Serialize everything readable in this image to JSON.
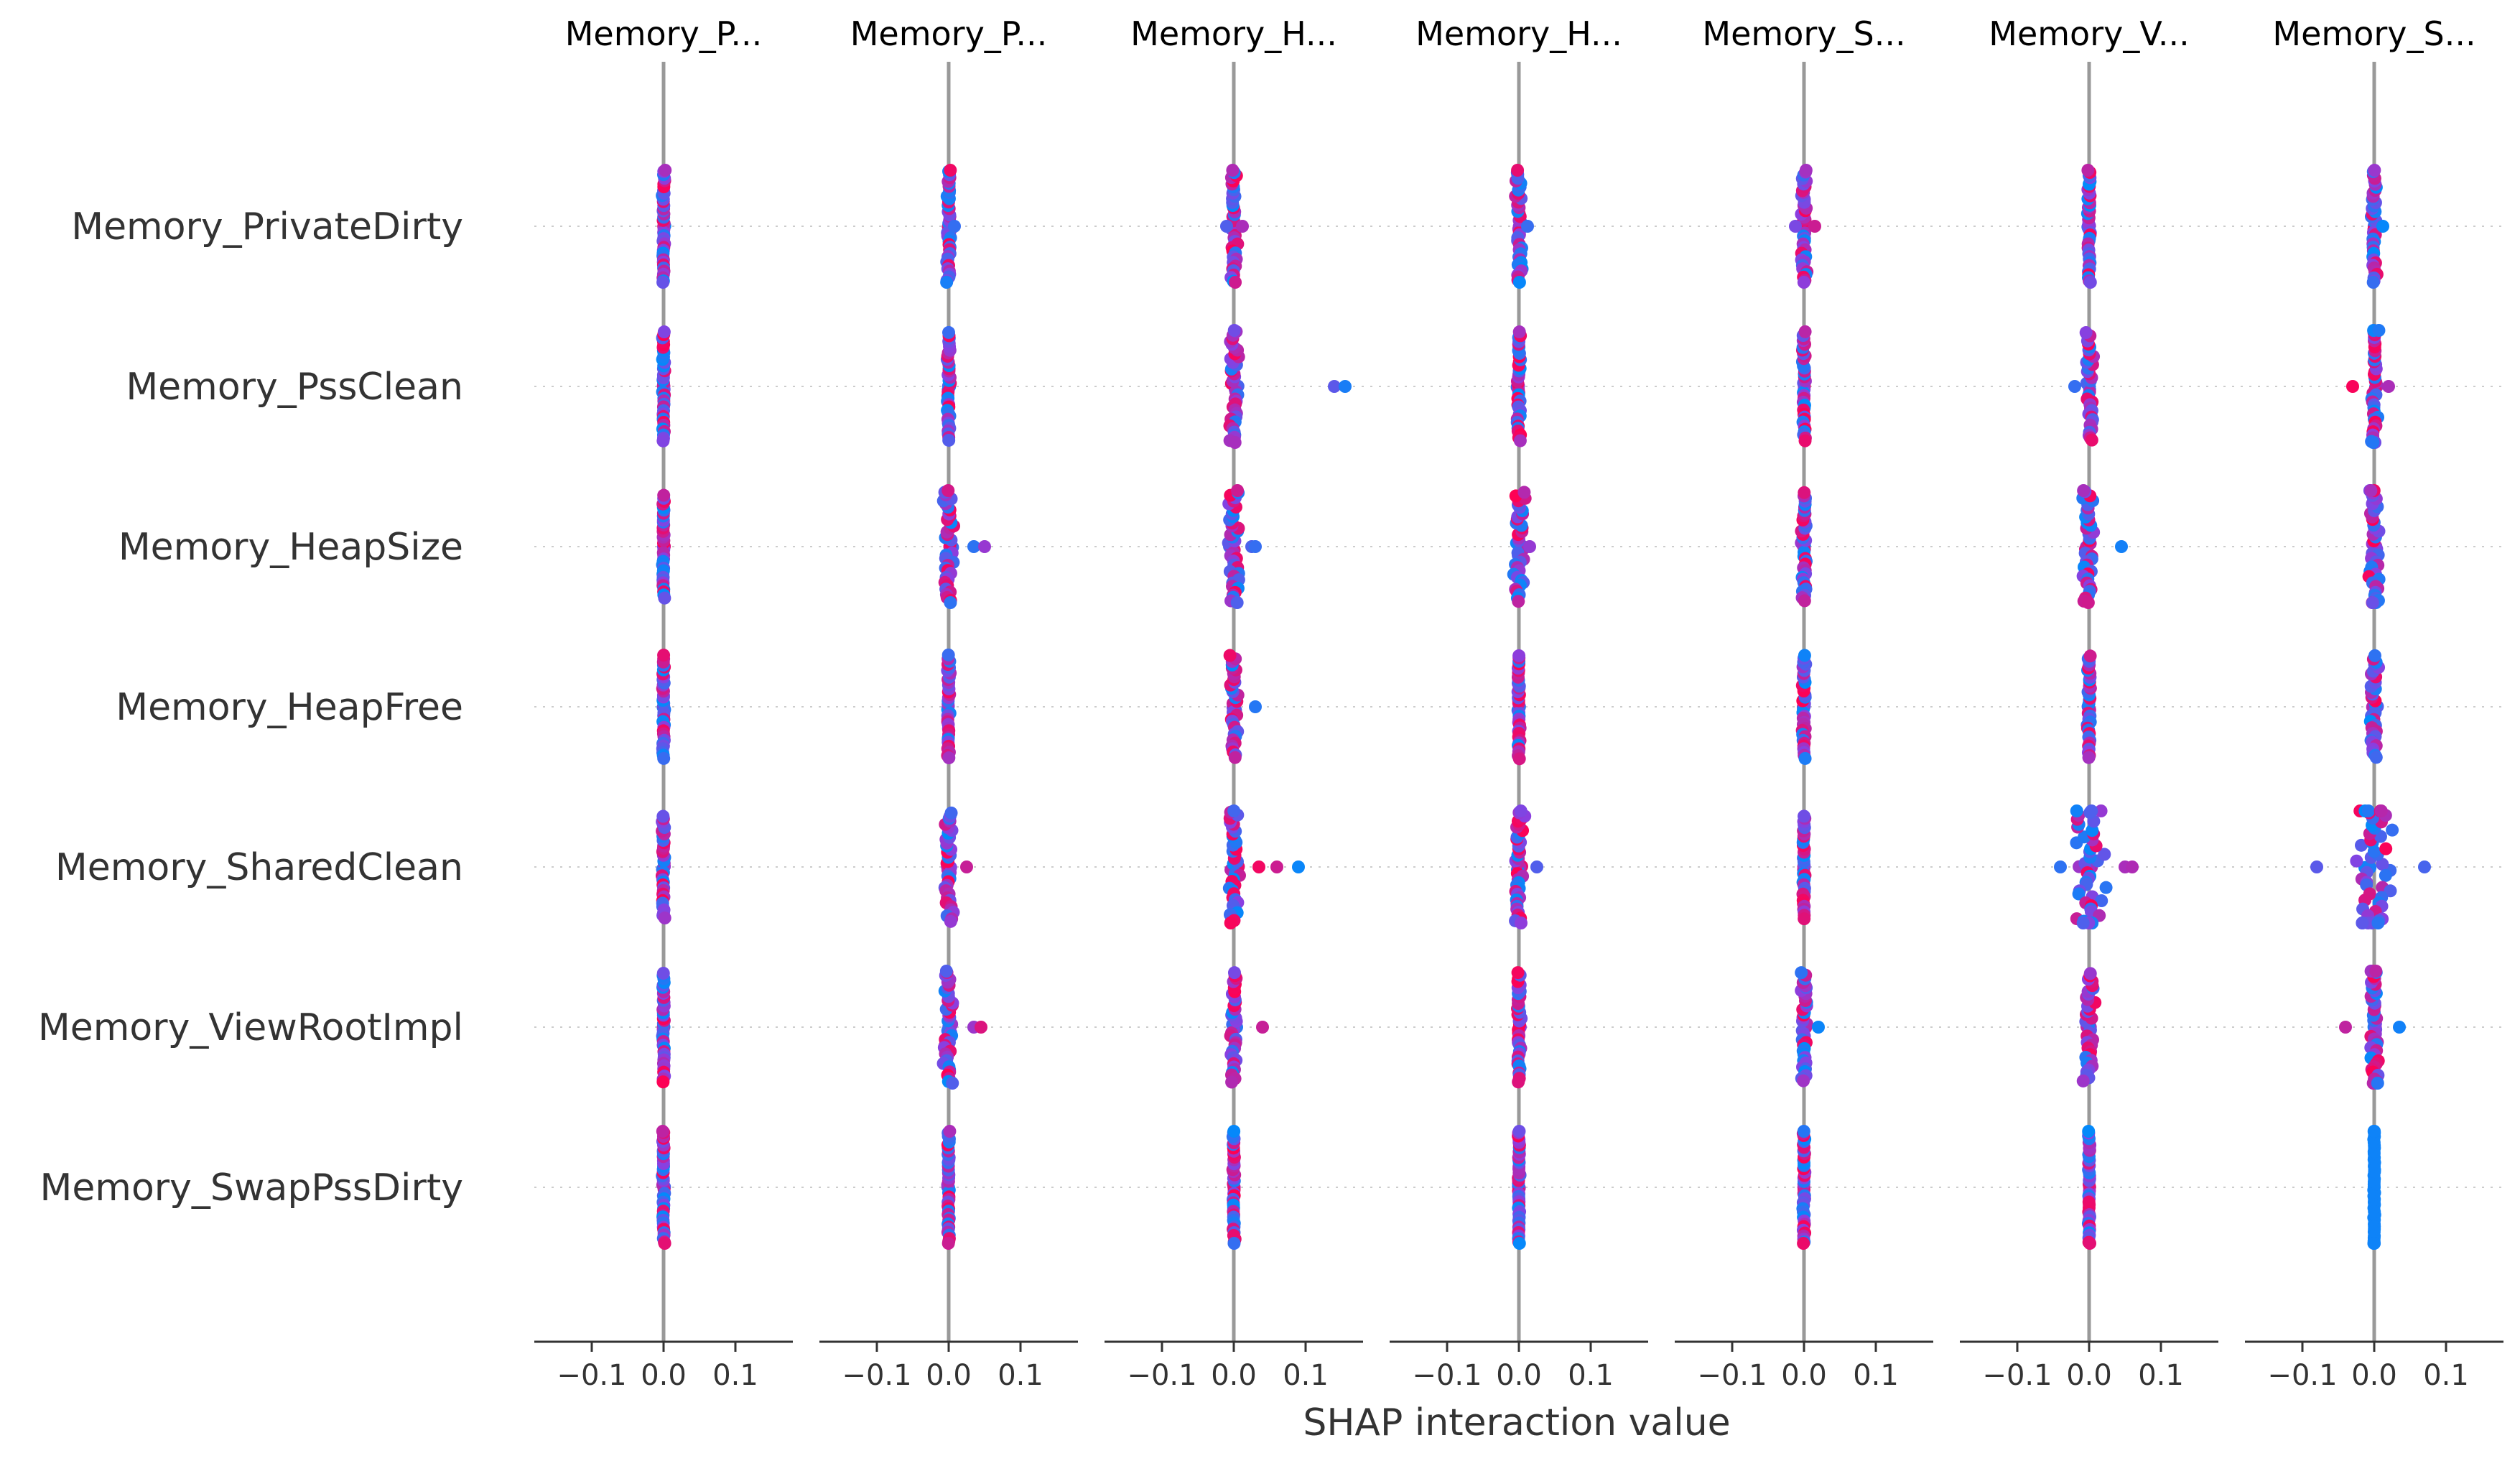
{
  "chart_data": {
    "type": "scatter",
    "subtype": "shap-interaction-beeswarm",
    "xlabel": "SHAP interaction value",
    "row_labels": [
      "Memory_PrivateDirty",
      "Memory_PssClean",
      "Memory_HeapSize",
      "Memory_HeapFree",
      "Memory_SharedClean",
      "Memory_ViewRootImpl",
      "Memory_SwapPssDirty"
    ],
    "column_titles": [
      "Memory_P...",
      "Memory_P...",
      "Memory_H...",
      "Memory_H...",
      "Memory_S...",
      "Memory_V...",
      "Memory_S..."
    ],
    "x_ticks": [
      {
        "value": -0.1,
        "label": "−0.1"
      },
      {
        "value": 0.0,
        "label": "0.0"
      },
      {
        "value": 0.1,
        "label": "0.1"
      }
    ],
    "xlim": [
      -0.18,
      0.18
    ],
    "grid": "horizontal dotted per row",
    "colors": {
      "low": "#008bfb",
      "high": "#ff0052",
      "zero_line": "#999999",
      "axis": "#333333",
      "text": "#333333",
      "grid": "#cccccc"
    },
    "cells": [
      [
        {
          "n": 40,
          "spread": 0.003
        },
        {
          "n": 40,
          "spread": 0.004,
          "outliers": [
            0.008
          ]
        },
        {
          "n": 40,
          "spread": 0.006,
          "outliers": [
            -0.01,
            0.012
          ]
        },
        {
          "n": 40,
          "spread": 0.006,
          "outliers": [
            0.012
          ]
        },
        {
          "n": 40,
          "spread": 0.005,
          "outliers": [
            -0.012,
            0.015
          ]
        },
        {
          "n": 40,
          "spread": 0.003
        },
        {
          "n": 40,
          "spread": 0.005,
          "outliers": [
            0.012
          ]
        }
      ],
      [
        {
          "n": 38,
          "spread": 0.002
        },
        {
          "n": 38,
          "spread": 0.003
        },
        {
          "n": 40,
          "spread": 0.009,
          "outliers": [
            0.14,
            0.155
          ]
        },
        {
          "n": 38,
          "spread": 0.004
        },
        {
          "n": 38,
          "spread": 0.003
        },
        {
          "n": 38,
          "spread": 0.008,
          "outliers": [
            -0.02
          ]
        },
        {
          "n": 44,
          "spread": 0.008,
          "outliers": [
            -0.03,
            0.02
          ]
        }
      ],
      [
        {
          "n": 36,
          "spread": 0.002
        },
        {
          "n": 40,
          "spread": 0.01,
          "outliers": [
            0.035,
            0.05
          ]
        },
        {
          "n": 40,
          "spread": 0.01,
          "outliers": [
            0.025,
            0.03
          ]
        },
        {
          "n": 38,
          "spread": 0.01,
          "outliers": [
            0.015
          ]
        },
        {
          "n": 38,
          "spread": 0.006
        },
        {
          "n": 40,
          "spread": 0.012,
          "outliers": [
            0.045
          ]
        },
        {
          "n": 44,
          "spread": 0.01
        }
      ],
      [
        {
          "n": 36,
          "spread": 0.002
        },
        {
          "n": 36,
          "spread": 0.003
        },
        {
          "n": 36,
          "spread": 0.008,
          "outliers": [
            0.03
          ]
        },
        {
          "n": 36,
          "spread": 0.002
        },
        {
          "n": 36,
          "spread": 0.004
        },
        {
          "n": 36,
          "spread": 0.003
        },
        {
          "n": 36,
          "spread": 0.008
        }
      ],
      [
        {
          "n": 36,
          "spread": 0.003
        },
        {
          "n": 38,
          "spread": 0.008,
          "outliers": [
            0.025
          ]
        },
        {
          "n": 40,
          "spread": 0.01,
          "outliers": [
            0.035,
            0.06,
            0.09
          ]
        },
        {
          "n": 40,
          "spread": 0.01,
          "outliers": [
            0.025
          ]
        },
        {
          "n": 36,
          "spread": 0.002
        },
        {
          "n": 44,
          "spread": 0.03,
          "outliers": [
            -0.04,
            0.05,
            0.06
          ]
        },
        {
          "n": 48,
          "spread": 0.035,
          "outliers": [
            -0.08,
            0.07
          ]
        }
      ],
      [
        {
          "n": 38,
          "spread": 0.002
        },
        {
          "n": 40,
          "spread": 0.01,
          "outliers": [
            0.035,
            0.045
          ]
        },
        {
          "n": 38,
          "spread": 0.008,
          "outliers": [
            0.04
          ]
        },
        {
          "n": 38,
          "spread": 0.004
        },
        {
          "n": 38,
          "spread": 0.006,
          "outliers": [
            0.02
          ]
        },
        {
          "n": 38,
          "spread": 0.01
        },
        {
          "n": 44,
          "spread": 0.01,
          "outliers": [
            -0.04,
            0.035
          ]
        }
      ],
      [
        {
          "n": 40,
          "spread": 0.002
        },
        {
          "n": 40,
          "spread": 0.002
        },
        {
          "n": 40,
          "spread": 0.002
        },
        {
          "n": 40,
          "spread": 0.002
        },
        {
          "n": 40,
          "spread": 0.002
        },
        {
          "n": 40,
          "spread": 0.002
        },
        {
          "n": 44,
          "spread": 0.001
        }
      ]
    ]
  }
}
